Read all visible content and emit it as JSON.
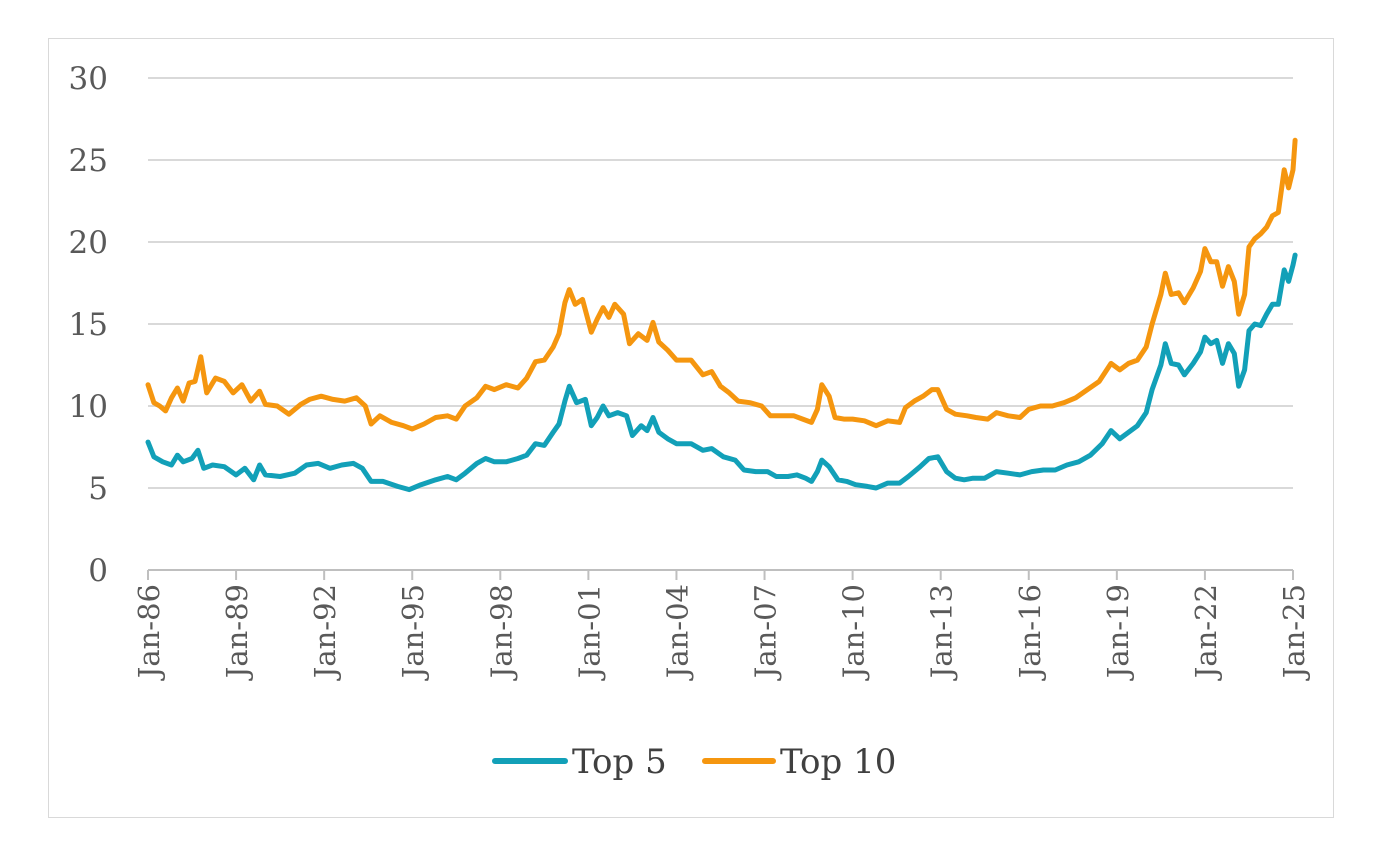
{
  "chart_data": {
    "type": "line",
    "title": "",
    "xlabel": "",
    "ylabel": "",
    "ylim": [
      0,
      30
    ],
    "yticks": [
      0,
      5,
      10,
      15,
      20,
      25,
      30
    ],
    "xlim": [
      1986.0,
      2025.0
    ],
    "x_tick_labels": [
      "Jan-86",
      "Jan-89",
      "Jan-92",
      "Jan-95",
      "Jan-98",
      "Jan-01",
      "Jan-04",
      "Jan-07",
      "Jan-10",
      "Jan-13",
      "Jan-16",
      "Jan-19",
      "Jan-22",
      "Jan-25"
    ],
    "x_tick_values": [
      1986,
      1989,
      1992,
      1995,
      1998,
      2001,
      2004,
      2007,
      2010,
      2013,
      2016,
      2019,
      2022,
      2025
    ],
    "grid": true,
    "legend_position": "bottom",
    "series": [
      {
        "name": "Top 5",
        "color": "#12a0b8",
        "points": [
          [
            1986.0,
            7.8
          ],
          [
            1986.2,
            6.9
          ],
          [
            1986.5,
            6.6
          ],
          [
            1986.8,
            6.4
          ],
          [
            1987.0,
            7.0
          ],
          [
            1987.2,
            6.6
          ],
          [
            1987.5,
            6.8
          ],
          [
            1987.7,
            7.3
          ],
          [
            1987.9,
            6.2
          ],
          [
            1988.2,
            6.4
          ],
          [
            1988.6,
            6.3
          ],
          [
            1989.0,
            5.8
          ],
          [
            1989.3,
            6.2
          ],
          [
            1989.6,
            5.5
          ],
          [
            1989.8,
            6.4
          ],
          [
            1990.0,
            5.8
          ],
          [
            1990.5,
            5.7
          ],
          [
            1991.0,
            5.9
          ],
          [
            1991.4,
            6.4
          ],
          [
            1991.8,
            6.5
          ],
          [
            1992.2,
            6.2
          ],
          [
            1992.6,
            6.4
          ],
          [
            1993.0,
            6.5
          ],
          [
            1993.3,
            6.2
          ],
          [
            1993.6,
            5.4
          ],
          [
            1994.0,
            5.4
          ],
          [
            1994.5,
            5.1
          ],
          [
            1994.9,
            4.9
          ],
          [
            1995.3,
            5.2
          ],
          [
            1995.8,
            5.5
          ],
          [
            1996.2,
            5.7
          ],
          [
            1996.5,
            5.5
          ],
          [
            1996.8,
            5.9
          ],
          [
            1997.2,
            6.5
          ],
          [
            1997.5,
            6.8
          ],
          [
            1997.8,
            6.6
          ],
          [
            1998.2,
            6.6
          ],
          [
            1998.6,
            6.8
          ],
          [
            1998.9,
            7.0
          ],
          [
            1999.2,
            7.7
          ],
          [
            1999.5,
            7.6
          ],
          [
            1999.8,
            8.4
          ],
          [
            2000.0,
            8.9
          ],
          [
            2000.2,
            10.3
          ],
          [
            2000.35,
            11.2
          ],
          [
            2000.6,
            10.2
          ],
          [
            2000.9,
            10.4
          ],
          [
            2001.1,
            8.8
          ],
          [
            2001.3,
            9.3
          ],
          [
            2001.5,
            10.0
          ],
          [
            2001.7,
            9.4
          ],
          [
            2002.0,
            9.6
          ],
          [
            2002.3,
            9.4
          ],
          [
            2002.5,
            8.2
          ],
          [
            2002.8,
            8.8
          ],
          [
            2003.0,
            8.5
          ],
          [
            2003.2,
            9.3
          ],
          [
            2003.4,
            8.4
          ],
          [
            2003.7,
            8.0
          ],
          [
            2004.0,
            7.7
          ],
          [
            2004.5,
            7.7
          ],
          [
            2004.9,
            7.3
          ],
          [
            2005.2,
            7.4
          ],
          [
            2005.6,
            6.9
          ],
          [
            2006.0,
            6.7
          ],
          [
            2006.3,
            6.1
          ],
          [
            2006.7,
            6.0
          ],
          [
            2007.1,
            6.0
          ],
          [
            2007.4,
            5.7
          ],
          [
            2007.8,
            5.7
          ],
          [
            2008.1,
            5.8
          ],
          [
            2008.4,
            5.6
          ],
          [
            2008.6,
            5.4
          ],
          [
            2008.8,
            6.0
          ],
          [
            2008.95,
            6.7
          ],
          [
            2009.2,
            6.3
          ],
          [
            2009.5,
            5.5
          ],
          [
            2009.8,
            5.4
          ],
          [
            2010.1,
            5.2
          ],
          [
            2010.5,
            5.1
          ],
          [
            2010.8,
            5.0
          ],
          [
            2011.2,
            5.3
          ],
          [
            2011.6,
            5.3
          ],
          [
            2011.9,
            5.7
          ],
          [
            2012.3,
            6.3
          ],
          [
            2012.6,
            6.8
          ],
          [
            2012.9,
            6.9
          ],
          [
            2013.2,
            6.0
          ],
          [
            2013.5,
            5.6
          ],
          [
            2013.8,
            5.5
          ],
          [
            2014.1,
            5.6
          ],
          [
            2014.5,
            5.6
          ],
          [
            2014.9,
            6.0
          ],
          [
            2015.3,
            5.9
          ],
          [
            2015.7,
            5.8
          ],
          [
            2016.1,
            6.0
          ],
          [
            2016.5,
            6.1
          ],
          [
            2016.9,
            6.1
          ],
          [
            2017.3,
            6.4
          ],
          [
            2017.7,
            6.6
          ],
          [
            2018.1,
            7.0
          ],
          [
            2018.5,
            7.7
          ],
          [
            2018.8,
            8.5
          ],
          [
            2019.1,
            8.0
          ],
          [
            2019.4,
            8.4
          ],
          [
            2019.7,
            8.8
          ],
          [
            2020.0,
            9.6
          ],
          [
            2020.2,
            11.0
          ],
          [
            2020.5,
            12.5
          ],
          [
            2020.65,
            13.8
          ],
          [
            2020.85,
            12.6
          ],
          [
            2021.1,
            12.5
          ],
          [
            2021.3,
            11.9
          ],
          [
            2021.6,
            12.6
          ],
          [
            2021.85,
            13.3
          ],
          [
            2022.0,
            14.2
          ],
          [
            2022.2,
            13.8
          ],
          [
            2022.4,
            14.0
          ],
          [
            2022.6,
            12.6
          ],
          [
            2022.8,
            13.8
          ],
          [
            2023.0,
            13.2
          ],
          [
            2023.15,
            11.2
          ],
          [
            2023.35,
            12.2
          ],
          [
            2023.5,
            14.6
          ],
          [
            2023.7,
            15.0
          ],
          [
            2023.9,
            14.9
          ],
          [
            2024.1,
            15.6
          ],
          [
            2024.3,
            16.2
          ],
          [
            2024.5,
            16.2
          ],
          [
            2024.7,
            18.3
          ],
          [
            2024.85,
            17.6
          ],
          [
            2025.0,
            18.6
          ],
          [
            2025.07,
            19.2
          ]
        ]
      },
      {
        "name": "Top 10",
        "color": "#f5960f",
        "points": [
          [
            1986.0,
            11.3
          ],
          [
            1986.2,
            10.2
          ],
          [
            1986.4,
            10.0
          ],
          [
            1986.6,
            9.7
          ],
          [
            1986.8,
            10.5
          ],
          [
            1987.0,
            11.1
          ],
          [
            1987.2,
            10.3
          ],
          [
            1987.4,
            11.4
          ],
          [
            1987.6,
            11.5
          ],
          [
            1987.8,
            13.0
          ],
          [
            1988.0,
            10.8
          ],
          [
            1988.3,
            11.7
          ],
          [
            1988.6,
            11.5
          ],
          [
            1988.9,
            10.8
          ],
          [
            1989.2,
            11.3
          ],
          [
            1989.5,
            10.3
          ],
          [
            1989.8,
            10.9
          ],
          [
            1990.0,
            10.1
          ],
          [
            1990.4,
            10.0
          ],
          [
            1990.8,
            9.5
          ],
          [
            1991.2,
            10.1
          ],
          [
            1991.5,
            10.4
          ],
          [
            1991.9,
            10.6
          ],
          [
            1992.3,
            10.4
          ],
          [
            1992.7,
            10.3
          ],
          [
            1993.1,
            10.5
          ],
          [
            1993.4,
            10.0
          ],
          [
            1993.6,
            8.9
          ],
          [
            1993.9,
            9.4
          ],
          [
            1994.3,
            9.0
          ],
          [
            1994.7,
            8.8
          ],
          [
            1995.0,
            8.6
          ],
          [
            1995.4,
            8.9
          ],
          [
            1995.8,
            9.3
          ],
          [
            1996.2,
            9.4
          ],
          [
            1996.5,
            9.2
          ],
          [
            1996.8,
            10.0
          ],
          [
            1997.2,
            10.5
          ],
          [
            1997.5,
            11.2
          ],
          [
            1997.8,
            11.0
          ],
          [
            1998.2,
            11.3
          ],
          [
            1998.6,
            11.1
          ],
          [
            1998.9,
            11.7
          ],
          [
            1999.2,
            12.7
          ],
          [
            1999.5,
            12.8
          ],
          [
            1999.8,
            13.6
          ],
          [
            2000.0,
            14.4
          ],
          [
            2000.2,
            16.3
          ],
          [
            2000.35,
            17.1
          ],
          [
            2000.55,
            16.2
          ],
          [
            2000.8,
            16.5
          ],
          [
            2001.1,
            14.5
          ],
          [
            2001.3,
            15.3
          ],
          [
            2001.5,
            16.0
          ],
          [
            2001.7,
            15.4
          ],
          [
            2001.9,
            16.2
          ],
          [
            2002.2,
            15.6
          ],
          [
            2002.4,
            13.8
          ],
          [
            2002.7,
            14.4
          ],
          [
            2003.0,
            14.0
          ],
          [
            2003.2,
            15.1
          ],
          [
            2003.4,
            13.9
          ],
          [
            2003.7,
            13.4
          ],
          [
            2004.0,
            12.8
          ],
          [
            2004.5,
            12.8
          ],
          [
            2004.9,
            11.9
          ],
          [
            2005.2,
            12.1
          ],
          [
            2005.5,
            11.2
          ],
          [
            2005.8,
            10.8
          ],
          [
            2006.1,
            10.3
          ],
          [
            2006.5,
            10.2
          ],
          [
            2006.9,
            10.0
          ],
          [
            2007.2,
            9.4
          ],
          [
            2007.6,
            9.4
          ],
          [
            2008.0,
            9.4
          ],
          [
            2008.3,
            9.2
          ],
          [
            2008.6,
            9.0
          ],
          [
            2008.8,
            9.8
          ],
          [
            2008.95,
            11.3
          ],
          [
            2009.2,
            10.6
          ],
          [
            2009.4,
            9.3
          ],
          [
            2009.7,
            9.2
          ],
          [
            2010.0,
            9.2
          ],
          [
            2010.4,
            9.1
          ],
          [
            2010.8,
            8.8
          ],
          [
            2011.2,
            9.1
          ],
          [
            2011.6,
            9.0
          ],
          [
            2011.8,
            9.9
          ],
          [
            2012.1,
            10.3
          ],
          [
            2012.4,
            10.6
          ],
          [
            2012.7,
            11.0
          ],
          [
            2012.9,
            11.0
          ],
          [
            2013.2,
            9.8
          ],
          [
            2013.5,
            9.5
          ],
          [
            2013.9,
            9.4
          ],
          [
            2014.2,
            9.3
          ],
          [
            2014.6,
            9.2
          ],
          [
            2014.9,
            9.6
          ],
          [
            2015.3,
            9.4
          ],
          [
            2015.7,
            9.3
          ],
          [
            2016.0,
            9.8
          ],
          [
            2016.4,
            10.0
          ],
          [
            2016.8,
            10.0
          ],
          [
            2017.2,
            10.2
          ],
          [
            2017.6,
            10.5
          ],
          [
            2018.0,
            11.0
          ],
          [
            2018.4,
            11.5
          ],
          [
            2018.8,
            12.6
          ],
          [
            2019.1,
            12.2
          ],
          [
            2019.4,
            12.6
          ],
          [
            2019.7,
            12.8
          ],
          [
            2020.0,
            13.6
          ],
          [
            2020.2,
            15.0
          ],
          [
            2020.5,
            16.8
          ],
          [
            2020.65,
            18.1
          ],
          [
            2020.85,
            16.8
          ],
          [
            2021.1,
            16.9
          ],
          [
            2021.3,
            16.3
          ],
          [
            2021.6,
            17.2
          ],
          [
            2021.85,
            18.2
          ],
          [
            2022.0,
            19.6
          ],
          [
            2022.2,
            18.8
          ],
          [
            2022.4,
            18.8
          ],
          [
            2022.6,
            17.3
          ],
          [
            2022.8,
            18.5
          ],
          [
            2023.0,
            17.6
          ],
          [
            2023.15,
            15.6
          ],
          [
            2023.35,
            16.8
          ],
          [
            2023.5,
            19.7
          ],
          [
            2023.7,
            20.2
          ],
          [
            2023.9,
            20.5
          ],
          [
            2024.1,
            20.9
          ],
          [
            2024.3,
            21.6
          ],
          [
            2024.5,
            21.8
          ],
          [
            2024.7,
            24.4
          ],
          [
            2024.85,
            23.3
          ],
          [
            2025.0,
            24.4
          ],
          [
            2025.07,
            26.2
          ]
        ]
      }
    ]
  }
}
